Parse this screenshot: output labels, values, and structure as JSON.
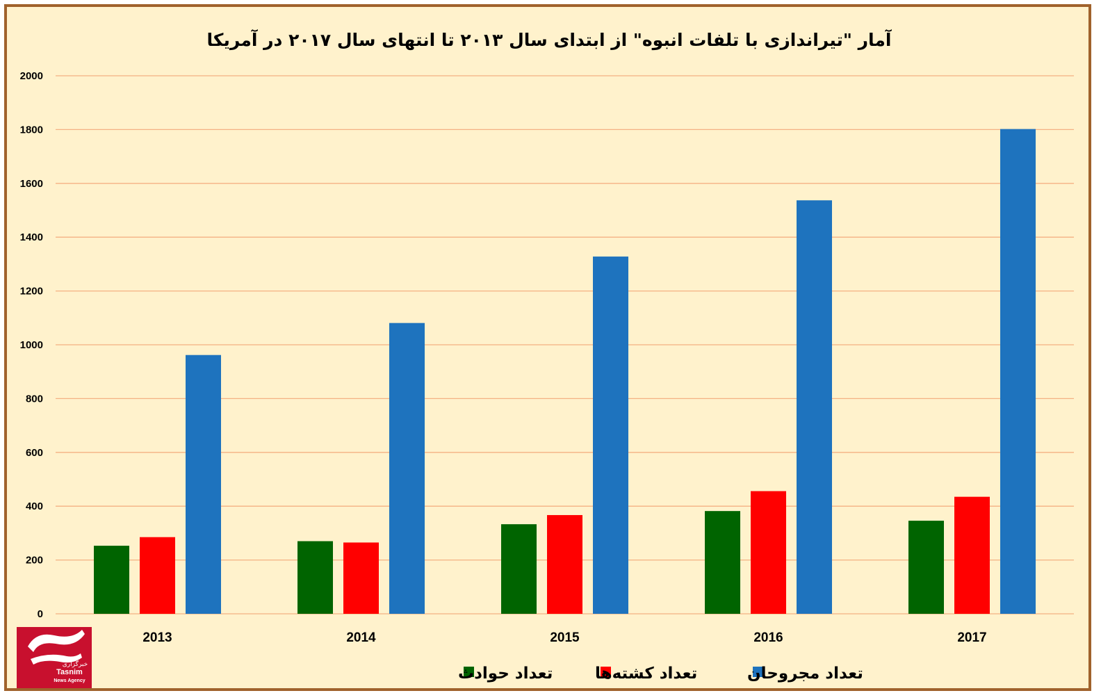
{
  "chart_data": {
    "type": "bar",
    "title": "آمار \"تیراندازی با تلفات انبوه\" از ابتدای سال ۲۰۱۳ تا انتهای سال ۲۰۱۷ در آمریکا",
    "categories": [
      "2013",
      "2014",
      "2015",
      "2016",
      "2017"
    ],
    "series": [
      {
        "name": "تعداد حوادث",
        "color": "#006400",
        "values": [
          253,
          270,
          333,
          382,
          346
        ]
      },
      {
        "name": "تعداد کشته‌ها",
        "color": "#ff0000",
        "values": [
          285,
          265,
          367,
          456,
          435
        ]
      },
      {
        "name": "تعداد مجروحان",
        "color": "#1e73be",
        "values": [
          962,
          1081,
          1328,
          1537,
          1802
        ]
      }
    ],
    "ylim": [
      0,
      2000
    ],
    "yticks": [
      0,
      200,
      400,
      600,
      800,
      1000,
      1200,
      1400,
      1600,
      1800,
      2000
    ],
    "grid": true,
    "legend_position": "bottom",
    "xlabel": "",
    "ylabel": ""
  },
  "logo": {
    "name": "tasnim-logo",
    "brand_fa": "تسنیم",
    "subtitle_fa": "خبرگزاری",
    "brand_en": "Tasnim",
    "subtitle_en": "News Agency",
    "color": "#c8102e"
  },
  "colors": {
    "background": "#fff2cc",
    "border": "#a0622c",
    "gridline": "#f4b183"
  }
}
